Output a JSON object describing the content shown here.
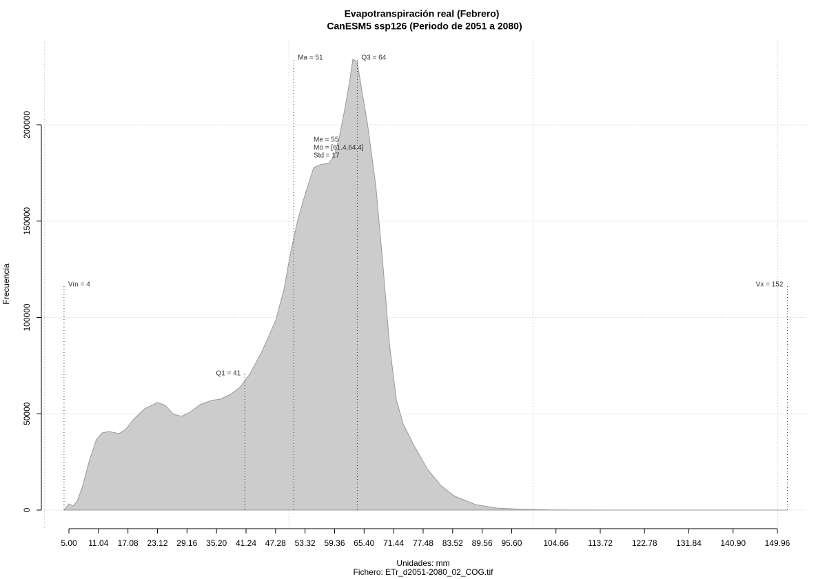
{
  "chart_data": {
    "type": "area",
    "title": "Evapotranspiración real (Febrero)",
    "subtitle": "CanESM5 ssp126 (Periodo de 2051 a 2080)",
    "x_label": "Unidades: mm",
    "caption": "Fichero: ETr_d2051-2080_02_COG.tif",
    "y_label": "Frecuencia",
    "color": "#cccccc",
    "x": [
      4.0,
      5,
      5.85,
      6.7,
      7.8,
      9.2,
      10.6,
      11.8,
      13.2,
      15.2,
      16.6,
      18.4,
      20.5,
      23.1,
      24.7,
      26.4,
      28.1,
      29.8,
      31.8,
      34.1,
      36.0,
      38.1,
      40.0,
      42.0,
      44.5,
      47.3,
      49.0,
      50.4,
      51.8,
      53.2,
      55.1,
      56.5,
      58.2,
      59.3,
      60.3,
      61.4,
      62.4,
      63.1,
      64.0,
      64.9,
      66.1,
      67.8,
      69.2,
      70.6,
      72.0,
      73.4,
      75.5,
      78.3,
      81.2,
      84.0,
      88.2,
      92.4,
      98.1,
      103.7,
      117.8,
      152
    ],
    "values": [
      0,
      3220,
      2150,
      4650,
      12500,
      25760,
      36500,
      40070,
      40800,
      39700,
      41900,
      47600,
      52600,
      55800,
      54400,
      49700,
      48700,
      50800,
      54700,
      56900,
      57600,
      60100,
      63700,
      70500,
      82300,
      98400,
      114500,
      134200,
      150300,
      162800,
      177800,
      179300,
      180000,
      183900,
      193200,
      207500,
      221800,
      234000,
      232600,
      218300,
      200400,
      168200,
      128800,
      85900,
      57200,
      44700,
      34000,
      21500,
      12500,
      7160,
      2860,
      1070,
      360,
      100,
      0,
      0
    ],
    "xlim": [
      0,
      156
    ],
    "ylim": [
      -9700,
      243000
    ],
    "xticks": [
      {
        "value": 5,
        "label": "5.00"
      },
      11.04,
      17.08,
      23.12,
      29.16,
      {
        "value": 35.2,
        "label": "35.20"
      },
      41.24,
      47.28,
      53.32,
      59.36,
      {
        "value": 65.4,
        "label": "65.40"
      },
      71.44,
      77.48,
      83.52,
      89.56,
      {
        "value": 95.6,
        "label": "95.60"
      },
      104.66,
      113.72,
      122.78,
      131.84,
      {
        "value": 140.9,
        "label": "140.90"
      },
      149.96
    ],
    "yticks": [
      0,
      50000,
      100000,
      150000,
      200000
    ],
    "xgrid": [
      0,
      50,
      100,
      150
    ],
    "grid": true,
    "annotations": [
      {
        "label": "Vm = 4",
        "x": 4,
        "y": 117000,
        "side": "right"
      },
      {
        "label": "Q1 = 41",
        "x": 41,
        "y": 70800,
        "side": "left"
      },
      {
        "label": "Ma = 51",
        "x": 51,
        "y": 234700,
        "side": "right"
      },
      {
        "label": "Q3 = 64",
        "x": 64,
        "y": 234700,
        "side": "right"
      },
      {
        "label": "Vx = 152",
        "x": 152,
        "y": 117000,
        "side": "left"
      }
    ],
    "stats": [
      "Me = 55",
      "Mo = [61.4,64.4]",
      "Std = 17"
    ]
  }
}
